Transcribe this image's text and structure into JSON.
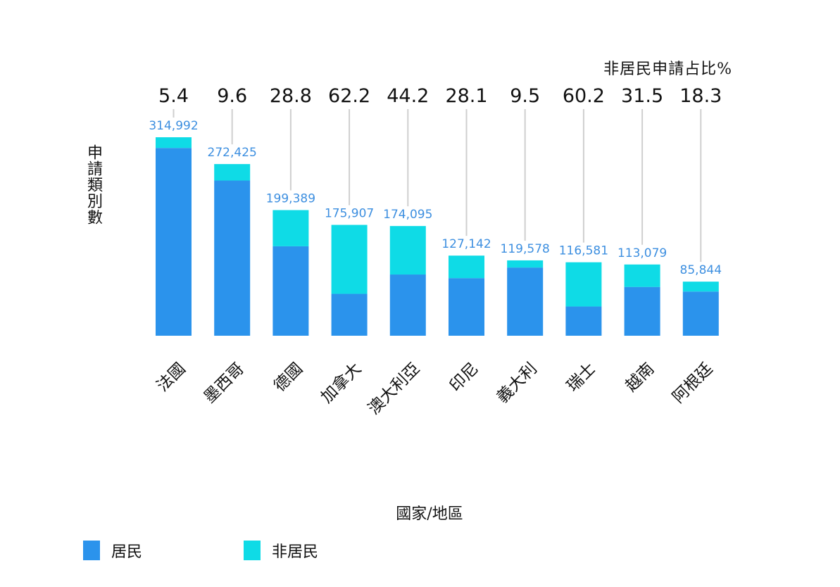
{
  "header": {
    "pct_title": "非居民申請占比%"
  },
  "axes": {
    "ylabel": "申請類別數",
    "xlabel": "國家/地區"
  },
  "legend": {
    "resident_label": "居民",
    "nonresident_label": "非居民"
  },
  "colors": {
    "resident": "#2b93ec",
    "nonresident": "#0fdbe6",
    "total_label": "#3d8fe0",
    "pct_text": "#111111",
    "connector": "#cfcfcf",
    "category_text": "#111111"
  },
  "chart_data": {
    "type": "bar",
    "stacked": true,
    "categories": [
      "法國",
      "墨西哥",
      "德國",
      "加拿大",
      "澳大利亞",
      "印尼",
      "義大利",
      "瑞士",
      "越南",
      "阿根廷"
    ],
    "totals": [
      314992,
      272425,
      199389,
      175907,
      174095,
      127142,
      119578,
      116581,
      113079,
      85844
    ],
    "total_labels": [
      "314,992",
      "272,425",
      "199,389",
      "175,907",
      "174,095",
      "127,142",
      "119,578",
      "116,581",
      "113,079",
      "85,844"
    ],
    "nonresident_pct": [
      5.4,
      9.6,
      28.8,
      62.2,
      44.2,
      28.1,
      9.5,
      60.2,
      31.5,
      18.3
    ],
    "nonresident_pct_labels": [
      "5.4",
      "9.6",
      "28.8",
      "62.2",
      "44.2",
      "28.1",
      "9.5",
      "60.2",
      "31.5",
      "18.3"
    ],
    "series": [
      {
        "name": "居民",
        "values": [
          297983,
          246272,
          141965,
          66493,
          97149,
          91415,
          108218,
          46399,
          77459,
          70135
        ]
      },
      {
        "name": "非居民",
        "values": [
          17009,
          26153,
          57424,
          109414,
          76946,
          35727,
          11360,
          70182,
          35620,
          15709
        ]
      }
    ],
    "ylim": [
      0,
      320000
    ],
    "xlabel": "國家/地區",
    "ylabel": "申請類別數",
    "grid": false,
    "legend_position": "bottom-left"
  }
}
